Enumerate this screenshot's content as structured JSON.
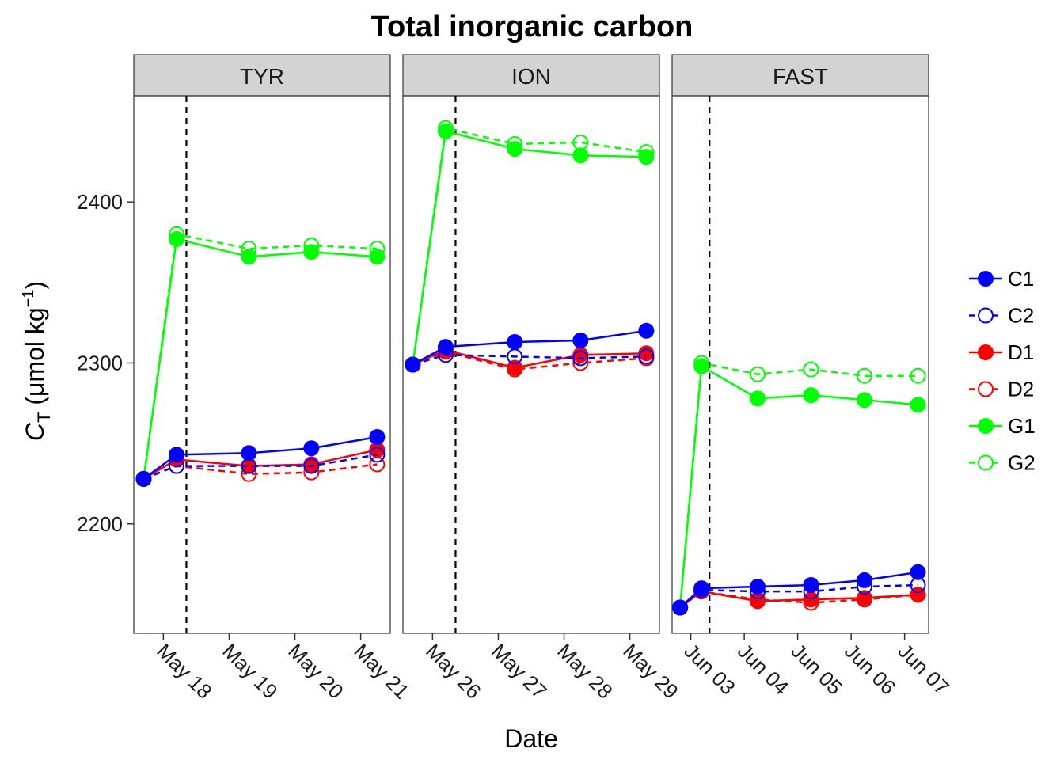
{
  "chart_data": {
    "type": "line",
    "title": "Total inorganic carbon",
    "xlabel": "Date",
    "ylabel_main": "C",
    "ylabel_sub": "T",
    "ylabel_unit_open": " (μmol kg",
    "ylabel_unit_sup": "−1",
    "ylabel_unit_close": ")",
    "ylim": [
      2132,
      2466
    ],
    "yticks": [
      2200,
      2300,
      2400
    ],
    "ytick_labels": [
      "2200",
      "2300",
      "2400"
    ],
    "grid": false,
    "legend_position": "right",
    "series_styles": {
      "C1": {
        "color": "#0000ff",
        "filled": true,
        "dashed": false
      },
      "C2": {
        "color": "#0000ff",
        "filled": false,
        "dashed": true
      },
      "D1": {
        "color": "#ff0000",
        "filled": true,
        "dashed": false
      },
      "D2": {
        "color": "#ff0000",
        "filled": false,
        "dashed": true
      },
      "G1": {
        "color": "#00ff00",
        "filled": true,
        "dashed": false
      },
      "G2": {
        "color": "#00ff00",
        "filled": false,
        "dashed": true
      }
    },
    "legend": [
      "C1",
      "C2",
      "D1",
      "D2",
      "G1",
      "G2"
    ],
    "panels": [
      {
        "name": "TYR",
        "x_ticks": [
          "May 18",
          "May 19",
          "May 20",
          "May 21"
        ],
        "x_tick_days": [
          18,
          19,
          20,
          21
        ],
        "x_range_days": [
          17.55,
          21.45
        ],
        "vline_day": 18.35,
        "x_days": [
          17.7,
          18.2,
          19.3,
          20.25,
          21.25
        ],
        "series": [
          {
            "name": "C1",
            "values": [
              2228,
              2243,
              2244,
              2247,
              2254
            ]
          },
          {
            "name": "C2",
            "values": [
              2228,
              2236,
              2236,
              2236,
              2243
            ]
          },
          {
            "name": "D1",
            "values": [
              2228,
              2240,
              2236,
              2237,
              2246
            ]
          },
          {
            "name": "D2",
            "values": [
              2228,
              2236,
              2231,
              2232,
              2237
            ]
          },
          {
            "name": "G1",
            "values": [
              2228,
              2377,
              2366,
              2369,
              2366
            ]
          },
          {
            "name": "G2",
            "values": [
              2228,
              2380,
              2371,
              2373,
              2371
            ]
          }
        ]
      },
      {
        "name": "ION",
        "x_ticks": [
          "May 26",
          "May 27",
          "May 28",
          "May 29"
        ],
        "x_tick_days": [
          26,
          27,
          28,
          29
        ],
        "x_range_days": [
          25.55,
          29.45
        ],
        "vline_day": 26.35,
        "x_days": [
          25.7,
          26.2,
          27.25,
          28.25,
          29.25
        ],
        "series": [
          {
            "name": "C1",
            "values": [
              2299,
              2310,
              2313,
              2314,
              2320
            ]
          },
          {
            "name": "C2",
            "values": [
              2299,
              2305,
              2304,
              2303,
              2304
            ]
          },
          {
            "name": "D1",
            "values": [
              2299,
              2308,
              2297,
              2305,
              2306
            ]
          },
          {
            "name": "D2",
            "values": [
              2299,
              2307,
              2296,
              2300,
              2303
            ]
          },
          {
            "name": "G1",
            "values": [
              2299,
              2444,
              2433,
              2429,
              2428
            ]
          },
          {
            "name": "G2",
            "values": [
              2299,
              2446,
              2436,
              2437,
              2431
            ]
          }
        ]
      },
      {
        "name": "FAST",
        "x_ticks": [
          "Jun 03",
          "Jun 04",
          "Jun 05",
          "Jun 06",
          "Jun 07"
        ],
        "x_tick_days": [
          3,
          4,
          5,
          6,
          7
        ],
        "x_range_days": [
          2.65,
          7.45
        ],
        "vline_day": 3.35,
        "x_days": [
          2.8,
          3.2,
          4.25,
          5.25,
          6.25,
          7.25
        ],
        "series": [
          {
            "name": "C1",
            "values": [
              2148,
              2160,
              2161,
              2162,
              2165,
              2170
            ]
          },
          {
            "name": "C2",
            "values": [
              2148,
              2159,
              2158,
              2158,
              2161,
              2162
            ]
          },
          {
            "name": "D1",
            "values": [
              2148,
              2158,
              2152,
              2153,
              2154,
              2156
            ]
          },
          {
            "name": "D2",
            "values": [
              2148,
              2158,
              2153,
              2151,
              2153,
              2156
            ]
          },
          {
            "name": "G1",
            "values": [
              2148,
              2298,
              2278,
              2280,
              2277,
              2274
            ]
          },
          {
            "name": "G2",
            "values": [
              2148,
              2300,
              2293,
              2296,
              2292,
              2292
            ]
          }
        ]
      }
    ]
  }
}
